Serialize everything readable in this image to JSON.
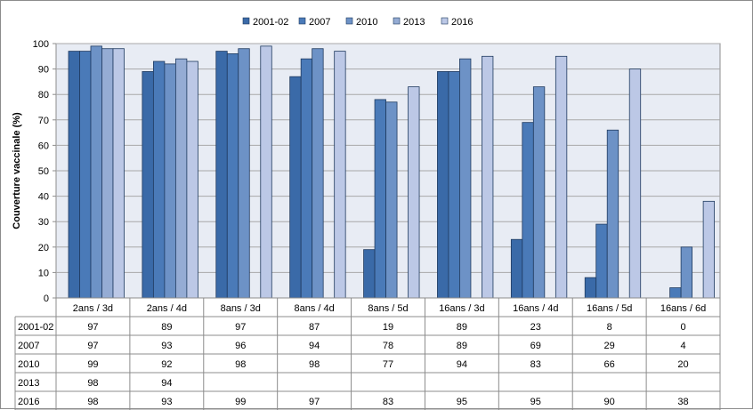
{
  "chart_data": {
    "type": "bar",
    "title": "",
    "xlabel": "",
    "ylabel": "Couverture vaccinale (%)",
    "ylim": [
      0,
      100
    ],
    "yticks": [
      0,
      10,
      20,
      30,
      40,
      50,
      60,
      70,
      80,
      90,
      100
    ],
    "grid": true,
    "legend": "top",
    "categories": [
      "2ans / 3d",
      "2ans / 4d",
      "8ans / 3d",
      "8ans / 4d",
      "8ans / 5d",
      "16ans / 3d",
      "16ans / 4d",
      "16ans / 5d",
      "16ans / 6d"
    ],
    "series": [
      {
        "name": "2001-02",
        "color": "#3a6aa8",
        "values": [
          97,
          89,
          97,
          87,
          19,
          89,
          23,
          8,
          0
        ]
      },
      {
        "name": "2007",
        "color": "#4a7ab8",
        "values": [
          97,
          93,
          96,
          94,
          78,
          89,
          69,
          29,
          4
        ]
      },
      {
        "name": "2010",
        "color": "#6d92c6",
        "values": [
          99,
          92,
          98,
          98,
          77,
          94,
          83,
          66,
          20
        ]
      },
      {
        "name": "2013",
        "color": "#95acd4",
        "values": [
          98,
          94,
          null,
          null,
          null,
          null,
          null,
          null,
          null
        ]
      },
      {
        "name": "2016",
        "color": "#bcc8e6",
        "values": [
          98,
          93,
          99,
          97,
          83,
          95,
          95,
          90,
          38
        ]
      }
    ]
  }
}
